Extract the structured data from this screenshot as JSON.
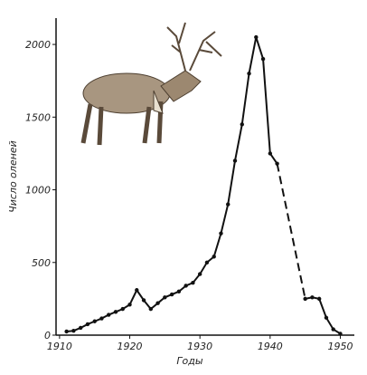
{
  "chart_data": {
    "type": "line",
    "y_label": "Число оленей",
    "x_label": "Годы",
    "x": [
      1911,
      1912,
      1913,
      1914,
      1915,
      1916,
      1917,
      1918,
      1919,
      1920,
      1921,
      1922,
      1923,
      1924,
      1925,
      1926,
      1927,
      1928,
      1929,
      1930,
      1931,
      1932,
      1933,
      1934,
      1935,
      1936,
      1937,
      1938,
      1939,
      1940,
      1941,
      1942,
      1943,
      1944,
      1945,
      1946,
      1947,
      1948,
      1949,
      1950
    ],
    "values": [
      25,
      30,
      50,
      75,
      95,
      115,
      140,
      160,
      180,
      210,
      310,
      240,
      180,
      220,
      260,
      280,
      300,
      340,
      360,
      420,
      500,
      540,
      700,
      900,
      1200,
      1450,
      1800,
      2050,
      1900,
      1250,
      1180,
      null,
      null,
      null,
      250,
      260,
      250,
      120,
      40,
      10
    ],
    "color": "#111111",
    "gap_style": "dashed",
    "xlim": [
      1909.5,
      1952
    ],
    "xticks": [
      1910,
      1920,
      1930,
      1940,
      1950
    ],
    "ylim": [
      0,
      2150
    ],
    "yticks": [
      0,
      500,
      1000,
      1500,
      2000
    ]
  }
}
